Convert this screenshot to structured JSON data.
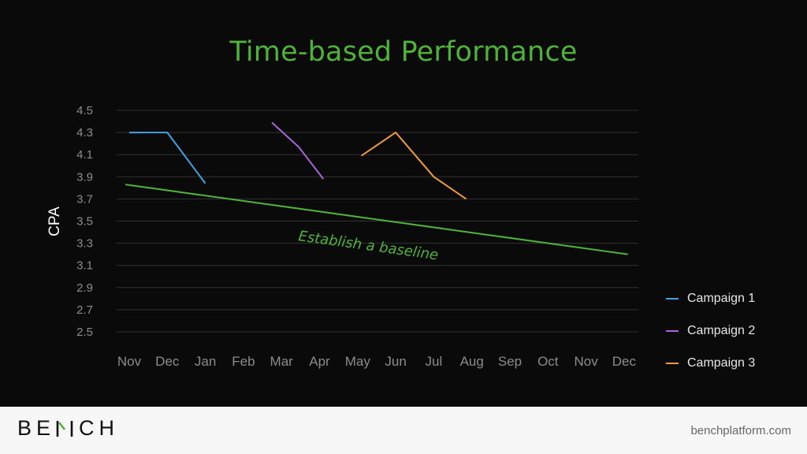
{
  "slide": {
    "title": "Time-based Performance"
  },
  "footer": {
    "brand_pre": "BE",
    "brand_mark": "N",
    "brand_post": "CH",
    "website": "benchplatform.com"
  },
  "colors": {
    "title": "#4fb33b",
    "baseline": "#4fb33b",
    "campaign1": "#3fa2e2",
    "campaign2": "#a865d8",
    "campaign3": "#f29a3e",
    "grid": "#333333",
    "tick_text": "#8c8c8c",
    "ylabel": "#ffffff"
  },
  "chart_data": {
    "type": "line",
    "title": "Time-based Performance",
    "ylabel": "CPA",
    "xlabel": "",
    "categories": [
      "Nov",
      "Dec",
      "Jan",
      "Feb",
      "Mar",
      "Apr",
      "May",
      "Jun",
      "Jul",
      "Aug",
      "Sep",
      "Oct",
      "Nov",
      "Dec"
    ],
    "ylim": [
      2.5,
      4.5
    ],
    "yticks": [
      "4.5",
      "4.3",
      "4.1",
      "3.9",
      "3.7",
      "3.5",
      "3.3",
      "3.1",
      "2.9",
      "2.7",
      "2.5"
    ],
    "grid": true,
    "legend_position": "right",
    "series": [
      {
        "name": "Campaign 1",
        "color": "#3fa2e2",
        "points": [
          [
            0,
            4.3
          ],
          [
            1,
            4.3
          ],
          [
            2,
            3.84
          ]
        ]
      },
      {
        "name": "Campaign 2",
        "color": "#a865d8",
        "points": [
          [
            3.75,
            4.39
          ],
          [
            4.45,
            4.17
          ],
          [
            5.1,
            3.88
          ]
        ]
      },
      {
        "name": "Campaign 3",
        "color": "#f29a3e",
        "points": [
          [
            6.1,
            4.09
          ],
          [
            7,
            4.3
          ],
          [
            8,
            3.9
          ],
          [
            8.85,
            3.7
          ]
        ]
      }
    ],
    "baseline": {
      "label": "Establish a baseline",
      "color": "#4fb33b",
      "points": [
        [
          -0.1,
          3.83
        ],
        [
          13.1,
          3.2
        ]
      ]
    }
  }
}
